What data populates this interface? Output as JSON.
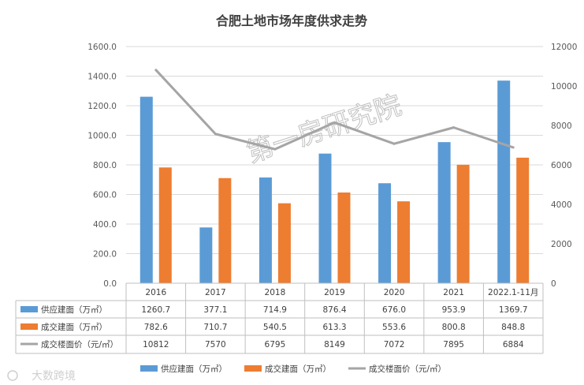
{
  "chart_data": {
    "type": "bar",
    "title": "合肥土地市场年度供求走势",
    "categories": [
      "2016",
      "2017",
      "2018",
      "2019",
      "2020",
      "2021",
      "2022.1-11月"
    ],
    "series": [
      {
        "name": "供应建面（万㎡）",
        "kind": "bar",
        "axis": "left",
        "color": "#5b9bd5",
        "values": [
          1260.7,
          377.1,
          714.9,
          876.4,
          676.0,
          953.9,
          1369.7
        ],
        "labels": [
          "1260.7",
          "377.1",
          "714.9",
          "876.4",
          "676.0",
          "953.9",
          "1369.7"
        ]
      },
      {
        "name": "成交建面（万㎡）",
        "kind": "bar",
        "axis": "left",
        "color": "#ed7d31",
        "values": [
          782.6,
          710.7,
          540.5,
          613.3,
          553.6,
          800.8,
          848.8
        ],
        "labels": [
          "782.6",
          "710.7",
          "540.5",
          "613.3",
          "553.6",
          "800.8",
          "848.8"
        ]
      },
      {
        "name": "成交楼面价（元/㎡）",
        "kind": "line",
        "axis": "right",
        "color": "#a5a5a5",
        "values": [
          10812,
          7570,
          6795,
          8149,
          7072,
          7895,
          6884
        ],
        "labels": [
          "10812",
          "7570",
          "6795",
          "8149",
          "7072",
          "7895",
          "6884"
        ]
      }
    ],
    "y_left": {
      "min": 0,
      "max": 1600,
      "ticks": [
        "0.0",
        "200.0",
        "400.0",
        "600.0",
        "800.0",
        "1000.0",
        "1200.0",
        "1400.0",
        "1600.0"
      ]
    },
    "y_right": {
      "min": 0,
      "max": 12000,
      "ticks": [
        "0",
        "2000",
        "4000",
        "6000",
        "8000",
        "10000",
        "12000"
      ]
    },
    "legend": {
      "position": "bottom"
    },
    "data_table": true
  },
  "watermark": "第一房研究院",
  "brand": "大数跨境"
}
